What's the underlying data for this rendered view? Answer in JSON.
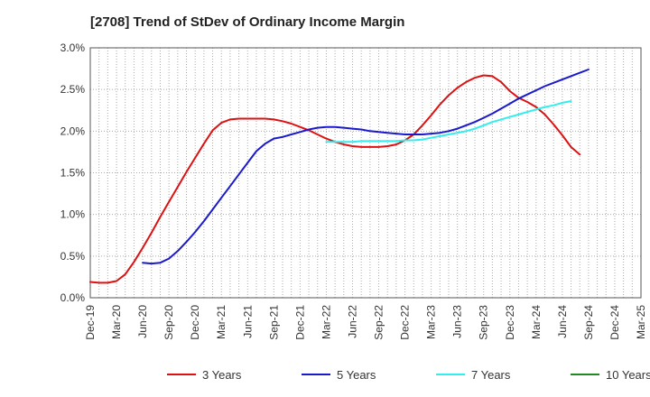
{
  "chart_data": {
    "type": "line",
    "title": "[2708]  Trend of StDev of Ordinary Income Margin",
    "xlabel": "",
    "ylabel": "",
    "x_ticks": [
      "Dec-19",
      "Mar-20",
      "Jun-20",
      "Sep-20",
      "Dec-20",
      "Mar-21",
      "Jun-21",
      "Sep-21",
      "Dec-21",
      "Mar-22",
      "Jun-22",
      "Sep-22",
      "Dec-22",
      "Mar-23",
      "Jun-23",
      "Sep-23",
      "Dec-23",
      "Mar-24",
      "Jun-24",
      "Sep-24",
      "Dec-24",
      "Mar-25"
    ],
    "y_ticks": [
      "0.0%",
      "0.5%",
      "1.0%",
      "1.5%",
      "2.0%",
      "2.5%",
      "3.0%"
    ],
    "ylim": [
      0,
      3.0
    ],
    "grid": "dotted",
    "legend_position": "bottom",
    "series": [
      {
        "name": "3 Years",
        "color": "#dd1111",
        "start_index": 0,
        "values": [
          0.19,
          0.18,
          0.18,
          0.2,
          0.28,
          0.43,
          0.6,
          0.78,
          0.97,
          1.15,
          1.33,
          1.51,
          1.68,
          1.85,
          2.01,
          2.1,
          2.14,
          2.15,
          2.15,
          2.15,
          2.15,
          2.14,
          2.12,
          2.09,
          2.05,
          2.01,
          1.96,
          1.91,
          1.87,
          1.84,
          1.82,
          1.81,
          1.81,
          1.81,
          1.82,
          1.84,
          1.89,
          1.96,
          2.07,
          2.19,
          2.32,
          2.43,
          2.52,
          2.59,
          2.64,
          2.67,
          2.66,
          2.59,
          2.48,
          2.4,
          2.35,
          2.29,
          2.2,
          2.08,
          1.95,
          1.81,
          1.72
        ]
      },
      {
        "name": "5 Years",
        "color": "#1a1acc",
        "start_index": 6,
        "values": [
          0.42,
          0.41,
          0.42,
          0.47,
          0.56,
          0.67,
          0.79,
          0.92,
          1.06,
          1.2,
          1.34,
          1.48,
          1.62,
          1.76,
          1.85,
          1.91,
          1.93,
          1.96,
          1.99,
          2.02,
          2.04,
          2.05,
          2.05,
          2.04,
          2.03,
          2.02,
          2.0,
          1.99,
          1.98,
          1.97,
          1.96,
          1.96,
          1.96,
          1.97,
          1.98,
          2.0,
          2.03,
          2.07,
          2.11,
          2.16,
          2.21,
          2.27,
          2.33,
          2.39,
          2.44,
          2.49,
          2.54,
          2.58,
          2.62,
          2.66,
          2.7,
          2.74
        ]
      },
      {
        "name": "7 Years",
        "color": "#33eeee",
        "start_index": 27,
        "values": [
          1.87,
          1.87,
          1.87,
          1.87,
          1.88,
          1.88,
          1.88,
          1.88,
          1.88,
          1.89,
          1.89,
          1.9,
          1.92,
          1.94,
          1.96,
          1.98,
          2.0,
          2.03,
          2.07,
          2.11,
          2.14,
          2.17,
          2.2,
          2.23,
          2.26,
          2.29,
          2.31,
          2.34,
          2.36
        ]
      },
      {
        "name": "10 Years",
        "color": "#228822",
        "start_index": 0,
        "values": []
      }
    ]
  }
}
